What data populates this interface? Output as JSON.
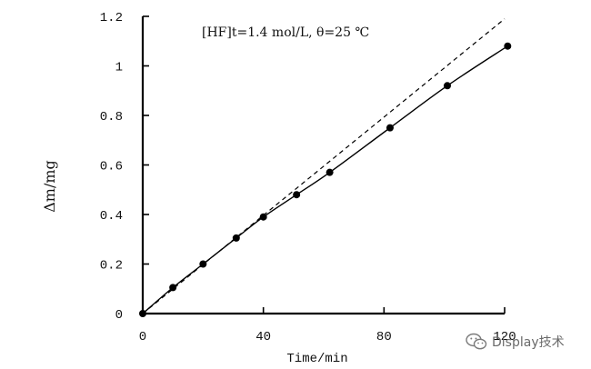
{
  "chart_data": {
    "type": "line",
    "title": "",
    "annotation": "[HF]t=1.4 mol/L, θ=25 ℃",
    "xlabel": "Time/min",
    "ylabel": "Δm/mg",
    "xlim": [
      0,
      120
    ],
    "ylim": [
      0,
      1.2
    ],
    "xticks": [
      "0",
      "40",
      "80",
      "120"
    ],
    "yticks": [
      "0",
      "0.2",
      "0.4",
      "0.6",
      "0.8",
      "1",
      "1.2"
    ],
    "grid": false,
    "series": [
      {
        "style": "solid-with-markers",
        "x": [
          0,
          10,
          20,
          31,
          40,
          51,
          62,
          82,
          101,
          121
        ],
        "y": [
          0,
          0.105,
          0.2,
          0.305,
          0.39,
          0.48,
          0.57,
          0.75,
          0.92,
          1.08
        ]
      },
      {
        "style": "dashed-linear",
        "x": [
          0,
          120
        ],
        "y": [
          0,
          1.19
        ]
      }
    ]
  },
  "watermark": {
    "text": "Display技术",
    "icon": "wechat-icon",
    "color": "#6a6a6a"
  }
}
